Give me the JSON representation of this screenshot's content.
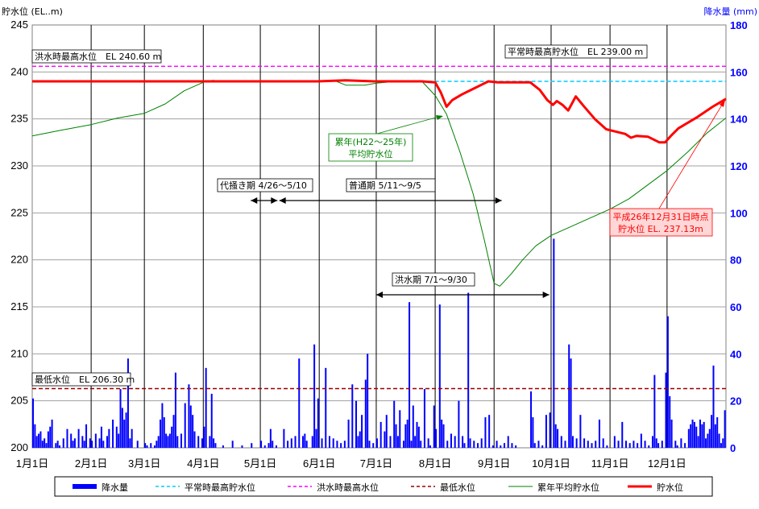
{
  "chart_data": {
    "type": "line",
    "y_left_label": "貯水位 (EL..m)",
    "y_right_label": "降水量 (mm)",
    "y_left_ticks": [
      "200",
      "205",
      "210",
      "215",
      "220",
      "225",
      "230",
      "235",
      "240",
      "245"
    ],
    "y_right_ticks": [
      "0",
      "20",
      "40",
      "60",
      "80",
      "100",
      "120",
      "140",
      "160",
      "180"
    ],
    "ylim_left": [
      200,
      245
    ],
    "ylim_right": [
      0,
      180
    ],
    "x_ticks": [
      "1月1日",
      "2月1日",
      "3月1日",
      "4月1日",
      "5月1日",
      "6月1日",
      "7月1日",
      "8月1日",
      "9月1日",
      "10月1日",
      "11月1日",
      "12月1日"
    ],
    "x_tick_days": [
      0,
      31,
      59,
      90,
      120,
      151,
      181,
      212,
      243,
      273,
      304,
      334
    ],
    "days_in_year": 365,
    "grid": true,
    "legend_position": "bottom",
    "colors": {
      "rain": "#0000ff",
      "normal_max": "#00ccff",
      "flood_max": "#ff00ff",
      "min": "#990000",
      "avg": "#008000",
      "level": "#ff0000"
    },
    "reference_lines": {
      "normal_max": 239.0,
      "flood_max": 240.6,
      "min": 206.3
    },
    "annotations": {
      "flood_max_label": "洪水時最高水位　EL 240.60 m",
      "normal_max_label": "平常時最高貯水位　EL 239.00 m",
      "min_label": "最低水位　EL 206.30 m",
      "avg_label_1": "累年(H22～25年)",
      "avg_label_2": "平均貯水位",
      "current_label_1": "平成26年12月31日時点",
      "current_label_2": "貯水位 EL. 237.13m",
      "period_shiro": "代掻き期 4/26～5/10",
      "period_normal": "普通期 5/11～9/5",
      "period_flood": "洪水期 7/1～9/30"
    },
    "periods": {
      "shiro": [
        115,
        129
      ],
      "normal": [
        130,
        247
      ],
      "flood": [
        181,
        272
      ]
    },
    "series": [
      {
        "name": "累年平均貯水位",
        "key": "avg",
        "points": [
          [
            0,
            233.2
          ],
          [
            15,
            233.8
          ],
          [
            31,
            234.4
          ],
          [
            45,
            235.1
          ],
          [
            59,
            235.6
          ],
          [
            70,
            236.6
          ],
          [
            80,
            238.0
          ],
          [
            90,
            238.9
          ],
          [
            95,
            239.1
          ],
          [
            100,
            239.0
          ],
          [
            120,
            239.0
          ],
          [
            140,
            239.0
          ],
          [
            151,
            239.0
          ],
          [
            160,
            239.0
          ],
          [
            165,
            238.6
          ],
          [
            175,
            238.6
          ],
          [
            181,
            238.8
          ],
          [
            192,
            239.0
          ],
          [
            205,
            239.0
          ],
          [
            212,
            237.5
          ],
          [
            218,
            235.5
          ],
          [
            225,
            231.5
          ],
          [
            232,
            227.0
          ],
          [
            238,
            222.0
          ],
          [
            243,
            217.5
          ],
          [
            246,
            217.2
          ],
          [
            252,
            218.5
          ],
          [
            258,
            220.0
          ],
          [
            265,
            221.5
          ],
          [
            273,
            222.6
          ],
          [
            283,
            223.5
          ],
          [
            294,
            224.5
          ],
          [
            304,
            225.4
          ],
          [
            314,
            226.5
          ],
          [
            324,
            228.0
          ],
          [
            334,
            229.5
          ],
          [
            345,
            231.5
          ],
          [
            355,
            233.5
          ],
          [
            365,
            235.1
          ]
        ]
      },
      {
        "name": "貯水位",
        "key": "level",
        "points": [
          [
            0,
            239.0
          ],
          [
            30,
            239.0
          ],
          [
            60,
            239.0
          ],
          [
            90,
            239.0
          ],
          [
            120,
            239.0
          ],
          [
            150,
            239.0
          ],
          [
            165,
            239.1
          ],
          [
            180,
            239.0
          ],
          [
            205,
            239.0
          ],
          [
            212,
            238.9
          ],
          [
            215,
            237.8
          ],
          [
            218,
            236.3
          ],
          [
            221,
            237.0
          ],
          [
            226,
            237.6
          ],
          [
            231,
            238.1
          ],
          [
            236,
            238.6
          ],
          [
            240,
            239.0
          ],
          [
            245,
            238.9
          ],
          [
            255,
            238.9
          ],
          [
            262,
            238.9
          ],
          [
            267,
            238.1
          ],
          [
            271,
            237.0
          ],
          [
            274,
            236.5
          ],
          [
            276,
            236.9
          ],
          [
            279,
            236.5
          ],
          [
            282,
            235.9
          ],
          [
            286,
            237.4
          ],
          [
            290,
            236.4
          ],
          [
            296,
            235.0
          ],
          [
            302,
            233.9
          ],
          [
            306,
            233.7
          ],
          [
            312,
            233.4
          ],
          [
            315,
            233.0
          ],
          [
            318,
            233.2
          ],
          [
            324,
            233.1
          ],
          [
            330,
            232.5
          ],
          [
            333,
            232.5
          ],
          [
            336,
            233.2
          ],
          [
            340,
            234.0
          ],
          [
            350,
            235.2
          ],
          [
            358,
            236.3
          ],
          [
            365,
            237.13
          ]
        ]
      }
    ],
    "rainfall": [
      [
        0,
        21
      ],
      [
        1,
        10
      ],
      [
        2,
        5
      ],
      [
        3,
        6
      ],
      [
        4,
        7
      ],
      [
        5,
        3
      ],
      [
        6,
        4
      ],
      [
        7,
        2
      ],
      [
        8,
        7
      ],
      [
        9,
        9
      ],
      [
        10,
        12
      ],
      [
        12,
        2
      ],
      [
        13,
        3
      ],
      [
        14,
        1
      ],
      [
        16,
        4
      ],
      [
        18,
        8
      ],
      [
        20,
        6
      ],
      [
        21,
        3
      ],
      [
        22,
        4
      ],
      [
        24,
        8
      ],
      [
        26,
        5
      ],
      [
        27,
        3
      ],
      [
        28,
        10
      ],
      [
        30,
        4
      ],
      [
        31,
        3
      ],
      [
        33,
        6
      ],
      [
        35,
        4
      ],
      [
        36,
        9
      ],
      [
        37,
        3
      ],
      [
        39,
        5
      ],
      [
        40,
        8
      ],
      [
        42,
        12
      ],
      [
        44,
        9
      ],
      [
        45,
        6
      ],
      [
        46,
        25
      ],
      [
        47,
        17
      ],
      [
        48,
        12
      ],
      [
        49,
        15
      ],
      [
        50,
        38
      ],
      [
        51,
        4
      ],
      [
        52,
        8
      ],
      [
        55,
        3
      ],
      [
        59,
        2
      ],
      [
        60,
        1
      ],
      [
        62,
        2
      ],
      [
        64,
        1
      ],
      [
        65,
        3
      ],
      [
        66,
        5
      ],
      [
        67,
        12
      ],
      [
        68,
        19
      ],
      [
        69,
        13
      ],
      [
        70,
        6
      ],
      [
        71,
        5
      ],
      [
        72,
        6
      ],
      [
        73,
        9
      ],
      [
        74,
        14
      ],
      [
        75,
        32
      ],
      [
        76,
        5
      ],
      [
        78,
        6
      ],
      [
        80,
        19
      ],
      [
        82,
        27
      ],
      [
        83,
        18
      ],
      [
        84,
        14
      ],
      [
        85,
        7
      ],
      [
        87,
        5
      ],
      [
        89,
        4
      ],
      [
        90,
        9
      ],
      [
        91,
        34
      ],
      [
        93,
        5
      ],
      [
        94,
        23
      ],
      [
        95,
        4
      ],
      [
        96,
        2
      ],
      [
        100,
        1
      ],
      [
        105,
        3
      ],
      [
        110,
        1
      ],
      [
        115,
        2
      ],
      [
        120,
        3
      ],
      [
        122,
        1
      ],
      [
        124,
        2
      ],
      [
        125,
        8
      ],
      [
        126,
        3
      ],
      [
        128,
        1
      ],
      [
        132,
        8
      ],
      [
        134,
        3
      ],
      [
        136,
        4
      ],
      [
        138,
        5
      ],
      [
        140,
        38
      ],
      [
        142,
        5
      ],
      [
        143,
        6
      ],
      [
        144,
        3
      ],
      [
        147,
        5
      ],
      [
        148,
        44
      ],
      [
        149,
        8
      ],
      [
        150,
        21
      ],
      [
        152,
        4
      ],
      [
        154,
        34
      ],
      [
        156,
        5
      ],
      [
        158,
        4
      ],
      [
        160,
        3
      ],
      [
        162,
        2
      ],
      [
        164,
        3
      ],
      [
        166,
        12
      ],
      [
        168,
        27
      ],
      [
        170,
        20
      ],
      [
        171,
        5
      ],
      [
        172,
        7
      ],
      [
        173,
        14
      ],
      [
        175,
        29
      ],
      [
        176,
        40
      ],
      [
        177,
        3
      ],
      [
        179,
        2
      ],
      [
        181,
        4
      ],
      [
        183,
        11
      ],
      [
        185,
        7
      ],
      [
        186,
        14
      ],
      [
        188,
        5
      ],
      [
        190,
        20
      ],
      [
        191,
        10
      ],
      [
        192,
        5
      ],
      [
        193,
        16
      ],
      [
        195,
        3
      ],
      [
        196,
        10
      ],
      [
        197,
        12
      ],
      [
        198,
        62
      ],
      [
        199,
        3
      ],
      [
        200,
        18
      ],
      [
        201,
        5
      ],
      [
        202,
        11
      ],
      [
        203,
        9
      ],
      [
        204,
        3
      ],
      [
        206,
        25
      ],
      [
        208,
        4
      ],
      [
        209,
        1
      ],
      [
        211,
        18
      ],
      [
        212,
        8
      ],
      [
        214,
        61
      ],
      [
        215,
        12
      ],
      [
        216,
        10
      ],
      [
        218,
        3
      ],
      [
        220,
        6
      ],
      [
        222,
        5
      ],
      [
        224,
        20
      ],
      [
        226,
        5
      ],
      [
        227,
        2
      ],
      [
        229,
        66
      ],
      [
        230,
        4
      ],
      [
        232,
        3
      ],
      [
        234,
        2
      ],
      [
        236,
        4
      ],
      [
        238,
        13
      ],
      [
        240,
        14
      ],
      [
        242,
        1
      ],
      [
        244,
        3
      ],
      [
        246,
        1
      ],
      [
        248,
        2
      ],
      [
        250,
        5
      ],
      [
        252,
        2
      ],
      [
        254,
        1
      ],
      [
        262,
        24
      ],
      [
        263,
        13
      ],
      [
        264,
        2
      ],
      [
        266,
        3
      ],
      [
        268,
        1
      ],
      [
        270,
        14
      ],
      [
        272,
        15
      ],
      [
        274,
        89
      ],
      [
        275,
        10
      ],
      [
        276,
        8
      ],
      [
        278,
        5
      ],
      [
        280,
        3
      ],
      [
        282,
        44
      ],
      [
        283,
        38
      ],
      [
        284,
        5
      ],
      [
        286,
        4
      ],
      [
        288,
        14
      ],
      [
        290,
        4
      ],
      [
        292,
        3
      ],
      [
        294,
        2
      ],
      [
        296,
        3
      ],
      [
        298,
        12
      ],
      [
        300,
        4
      ],
      [
        302,
        1
      ],
      [
        306,
        5
      ],
      [
        308,
        3
      ],
      [
        310,
        11
      ],
      [
        312,
        3
      ],
      [
        314,
        2
      ],
      [
        316,
        3
      ],
      [
        318,
        2
      ],
      [
        320,
        6
      ],
      [
        322,
        3
      ],
      [
        324,
        1
      ],
      [
        326,
        5
      ],
      [
        327,
        31
      ],
      [
        328,
        4
      ],
      [
        329,
        2
      ],
      [
        331,
        3
      ],
      [
        333,
        32
      ],
      [
        334,
        56
      ],
      [
        335,
        22
      ],
      [
        336,
        12
      ],
      [
        338,
        3
      ],
      [
        339,
        1
      ],
      [
        341,
        4
      ],
      [
        343,
        2
      ],
      [
        345,
        8
      ],
      [
        346,
        10
      ],
      [
        347,
        12
      ],
      [
        348,
        11
      ],
      [
        349,
        9
      ],
      [
        350,
        5
      ],
      [
        351,
        12
      ],
      [
        352,
        10
      ],
      [
        353,
        11
      ],
      [
        354,
        4
      ],
      [
        355,
        6
      ],
      [
        356,
        8
      ],
      [
        357,
        14
      ],
      [
        358,
        35
      ],
      [
        359,
        10
      ],
      [
        360,
        13
      ],
      [
        361,
        6
      ],
      [
        362,
        2
      ],
      [
        363,
        4
      ],
      [
        364,
        16
      ]
    ],
    "legend": [
      {
        "key": "rain",
        "label": "降水量",
        "style": "bar"
      },
      {
        "key": "normal_max",
        "label": "平常時最高貯水位",
        "style": "dash"
      },
      {
        "key": "flood_max",
        "label": "洪水時最高水位",
        "style": "dash"
      },
      {
        "key": "min",
        "label": "最低水位",
        "style": "dash"
      },
      {
        "key": "avg",
        "label": "累年平均貯水位",
        "style": "thin"
      },
      {
        "key": "level",
        "label": "貯水位",
        "style": "thick"
      }
    ]
  }
}
